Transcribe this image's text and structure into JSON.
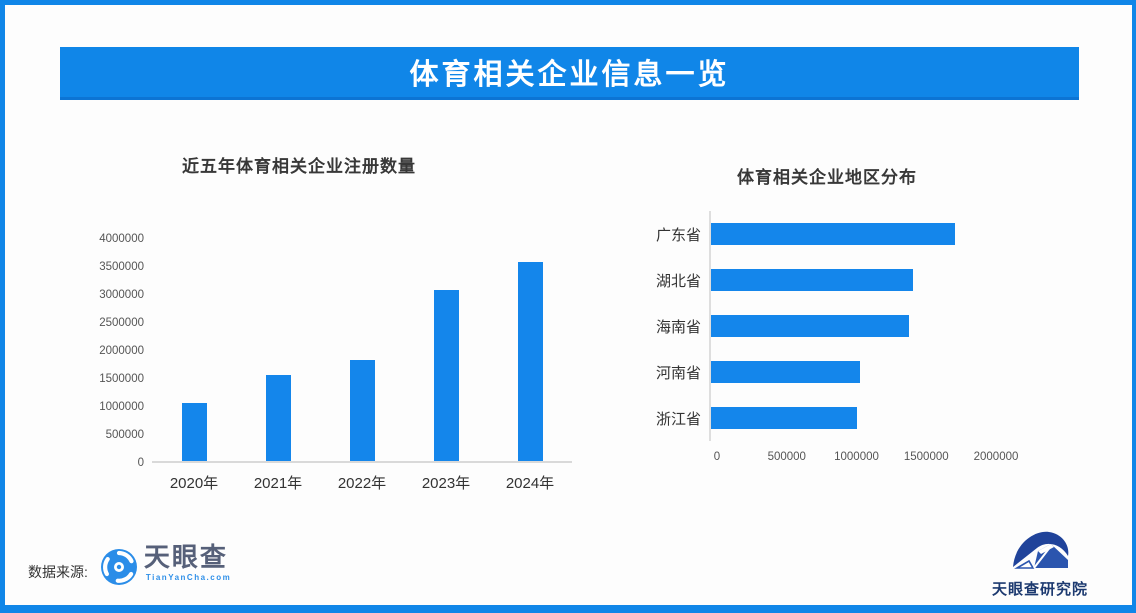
{
  "page": {
    "banner_title": "体育相关企业信息一览"
  },
  "colors": {
    "banner_blue": "#1086e8",
    "bar_blue": "#1486eb",
    "axis_gray": "#d9d9d9"
  },
  "chart_data": [
    {
      "type": "bar",
      "title": "近五年体育相关企业注册数量",
      "categories": [
        "2020年",
        "2021年",
        "2022年",
        "2023年",
        "2024年"
      ],
      "values": [
        1030000,
        1530000,
        1800000,
        3050000,
        3560000
      ],
      "xlabel": "",
      "ylabel": "",
      "ylim": [
        0,
        4000000
      ],
      "yticks": [
        0,
        500000,
        1000000,
        1500000,
        2000000,
        2500000,
        3000000,
        3500000,
        4000000
      ],
      "grid": false,
      "legend": "none",
      "bar_color": "#1486eb"
    },
    {
      "type": "bar-horizontal",
      "title": "体育相关企业地区分布",
      "categories": [
        "广东省",
        "湖北省",
        "海南省",
        "河南省",
        "浙江省"
      ],
      "values": [
        1750000,
        1450000,
        1420000,
        1070000,
        1050000
      ],
      "xlabel": "",
      "ylabel": "",
      "xlim": [
        0,
        2000000
      ],
      "xticks": [
        0,
        500000,
        1000000,
        1500000,
        2000000
      ],
      "grid": false,
      "legend": "none",
      "bar_color": "#1486eb"
    }
  ],
  "footer": {
    "source_label": "数据来源:",
    "tianyancha": {
      "icon": "aperture-eye-icon",
      "wordmark": "天眼查",
      "domain": "TianYanCha.com"
    },
    "research_institute": {
      "icon": "wave-mountain-logo-icon",
      "wordmark": "天眼查研究院"
    }
  }
}
